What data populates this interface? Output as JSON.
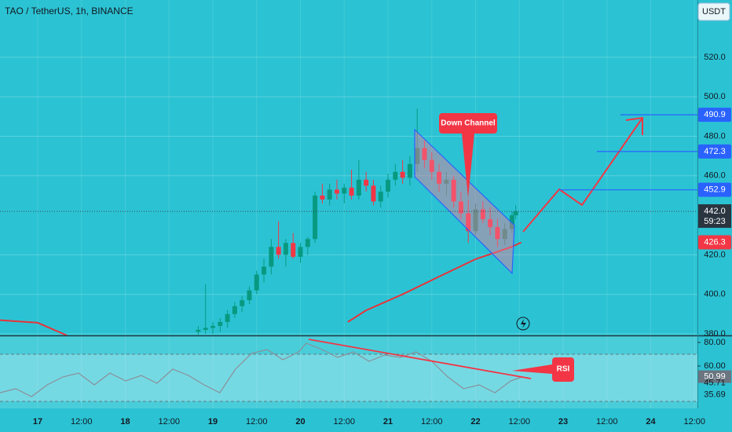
{
  "header": {
    "symbol": "TAO / TetherUS, 1h, BINANCE",
    "currency": "USDT"
  },
  "annotations": {
    "channel": "Down Channel",
    "rsi": "RSI"
  },
  "chart_data": [
    {
      "type": "candlestick",
      "x": [
        44,
        46,
        48,
        50,
        52,
        54,
        56,
        58,
        60,
        62,
        64,
        66,
        68,
        70,
        72,
        74,
        76,
        78,
        80,
        82,
        84,
        86,
        88,
        90,
        92,
        94,
        96,
        98,
        100,
        102,
        104,
        106,
        108,
        110,
        112,
        114,
        116,
        118,
        120,
        122,
        124,
        126,
        128,
        130,
        131
      ],
      "open": [
        381,
        382,
        383,
        384,
        386,
        390,
        394,
        397,
        402,
        410,
        414,
        424,
        420,
        426,
        419,
        424,
        428,
        450,
        448,
        453,
        451,
        454,
        450,
        458,
        455,
        447,
        452,
        458,
        462,
        459,
        466,
        474,
        468,
        462,
        456,
        458,
        447,
        441,
        432,
        443,
        438,
        434,
        428,
        433,
        440
      ],
      "high": [
        384,
        405,
        386,
        388,
        392,
        396,
        399,
        404,
        412,
        418,
        428,
        437,
        428,
        431,
        426,
        429,
        452,
        456,
        456,
        458,
        456,
        463,
        468,
        462,
        458,
        455,
        461,
        466,
        468,
        470,
        494,
        478,
        472,
        466,
        462,
        460,
        452,
        448,
        446,
        447,
        444,
        438,
        436,
        442,
        445
      ],
      "low": [
        379.5,
        380,
        380,
        381,
        383,
        388,
        391,
        395,
        400,
        406,
        410,
        418,
        414,
        418,
        416,
        420,
        426,
        446,
        445,
        448,
        446,
        448,
        448,
        452,
        445,
        444,
        449,
        455,
        456,
        455,
        462,
        464,
        458,
        452,
        450,
        444,
        438,
        426,
        430,
        436,
        430,
        424,
        425,
        431,
        438
      ],
      "close": [
        382,
        383,
        384,
        386,
        390,
        394,
        397,
        402,
        410,
        414,
        424,
        420,
        426,
        419,
        424,
        428,
        450,
        448,
        453,
        451,
        454,
        450,
        458,
        455,
        447,
        452,
        458,
        462,
        459,
        466,
        474,
        468,
        462,
        456,
        458,
        447,
        441,
        432,
        443,
        438,
        434,
        428,
        433,
        440,
        442
      ],
      "up_color": "#089981",
      "down_color": "#f23645",
      "xlim": [
        -10.33,
        180.8
      ],
      "xticks": [
        {
          "value": 0,
          "label": "17"
        },
        {
          "value": 12,
          "label": "12:00"
        },
        {
          "value": 24,
          "label": "18"
        },
        {
          "value": 36,
          "label": "12:00"
        },
        {
          "value": 48,
          "label": "19"
        },
        {
          "value": 60,
          "label": "12:00"
        },
        {
          "value": 72,
          "label": "20"
        },
        {
          "value": 84,
          "label": "12:00"
        },
        {
          "value": 96,
          "label": "21"
        },
        {
          "value": 108,
          "label": "12:00"
        },
        {
          "value": 120,
          "label": "22"
        },
        {
          "value": 132,
          "label": "12:00"
        },
        {
          "value": 144,
          "label": "23"
        },
        {
          "value": 156,
          "label": "12:00"
        },
        {
          "value": 168,
          "label": "24"
        },
        {
          "value": 180,
          "label": "12:00"
        }
      ],
      "ylim": [
        379.2,
        549
      ],
      "yticks": [
        {
          "value": 380,
          "label": "380.0"
        },
        {
          "value": 400,
          "label": "400.0"
        },
        {
          "value": 420,
          "label": "420.0"
        },
        {
          "value": 460,
          "label": "460.0"
        },
        {
          "value": 480,
          "label": "480.0"
        },
        {
          "value": 500,
          "label": "500.0"
        },
        {
          "value": 520,
          "label": "520.0"
        }
      ],
      "grid": true,
      "moving_average": {
        "color": "#e8333a",
        "x": [
          -10.33,
          0,
          8,
          80,
          85,
          90,
          100,
          110,
          120,
          130,
          132.5
        ],
        "values": [
          386.9,
          385.6,
          379.2,
          null,
          386,
          391.9,
          400,
          409,
          417.8,
          424.1,
          426.3
        ]
      },
      "levels": [
        {
          "value": 490.9,
          "color": "#2962ff"
        },
        {
          "value": 472.3,
          "color": "#2962ff"
        },
        {
          "value": 452.9,
          "color": "#2962ff"
        },
        {
          "value": 426.3,
          "color": "#f23645"
        }
      ],
      "current_price": {
        "value": 442,
        "label": "442.0"
      },
      "countdown": "59:23"
    },
    {
      "type": "line",
      "x": [
        -10.3,
        -6,
        -1.7,
        2.6,
        6.9,
        11.2,
        15.5,
        19.8,
        24.1,
        28.4,
        32.7,
        37,
        41.3,
        45.6,
        49.9,
        54.2,
        58.6,
        62.9,
        67.2,
        71.5,
        73.6,
        77.9,
        82.2,
        86.5,
        90.8,
        95.1,
        99.4,
        103.7,
        108,
        112.4,
        116.7,
        121,
        125.3,
        129.6,
        132.9
      ],
      "values": [
        37.3,
        40.7,
        34,
        44,
        50.7,
        54,
        44,
        54,
        47.3,
        52,
        45.3,
        57.3,
        52,
        44,
        37.3,
        57.3,
        70.7,
        74,
        65.3,
        72,
        79.3,
        74,
        67.3,
        72,
        64,
        69.3,
        67.3,
        72,
        64,
        50.7,
        40.7,
        44,
        37.3,
        47.3,
        50.99
      ],
      "color": "#8a8f99",
      "ylim": [
        24,
        85.3
      ],
      "yticks": [
        {
          "value": 80,
          "label": "80.00"
        },
        {
          "value": 60,
          "label": "60.00"
        }
      ],
      "band": [
        30,
        70
      ],
      "current": 50.99,
      "markers": [
        45.71,
        35.69
      ]
    }
  ]
}
